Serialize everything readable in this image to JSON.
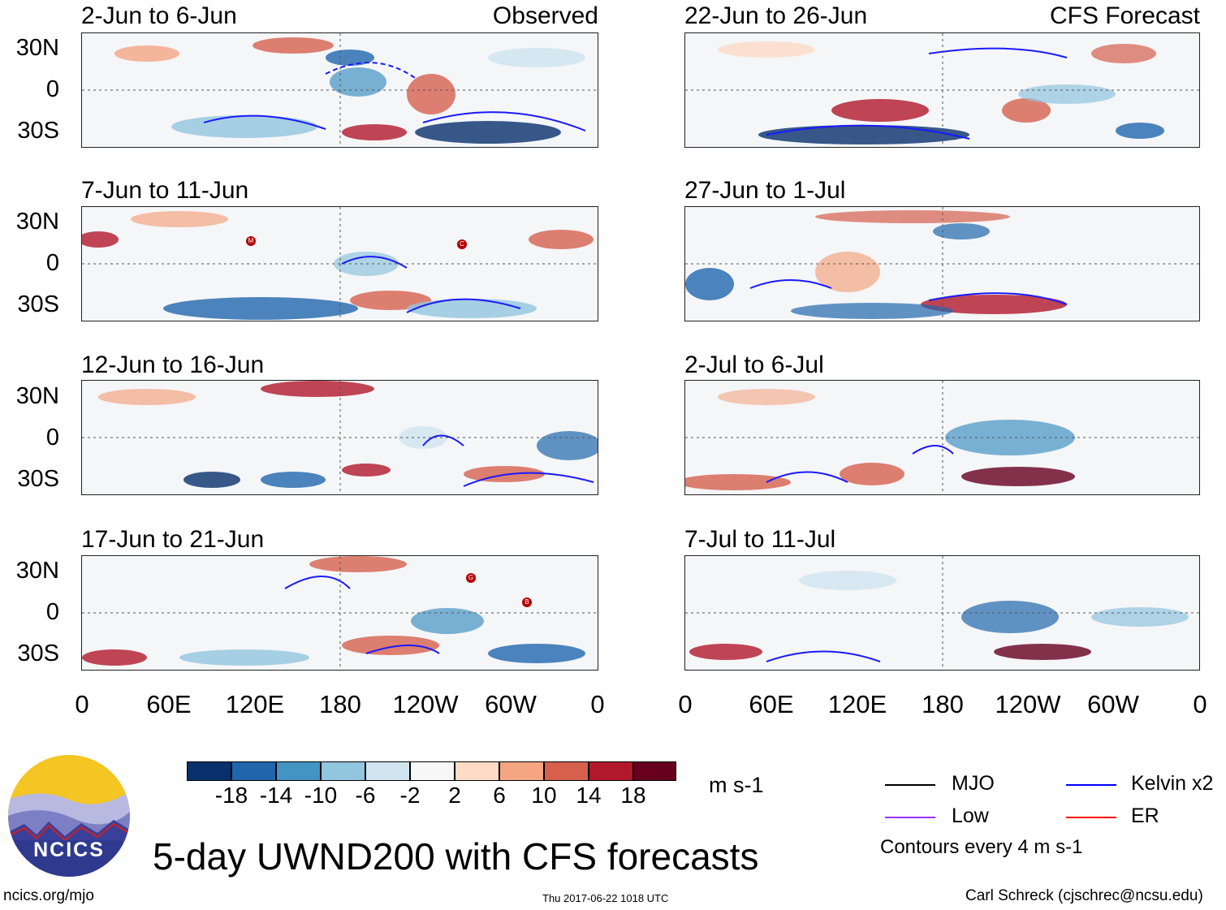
{
  "panels": {
    "observed": [
      {
        "title": "2-Jun to 6-Jun",
        "label": "Observed"
      },
      {
        "title": "7-Jun to 11-Jun"
      },
      {
        "title": "12-Jun to 16-Jun"
      },
      {
        "title": "17-Jun to 21-Jun"
      }
    ],
    "forecast": [
      {
        "title": "22-Jun to 26-Jun",
        "label": "CFS Forecast"
      },
      {
        "title": "27-Jun to 1-Jul"
      },
      {
        "title": "2-Jul to 6-Jul"
      },
      {
        "title": "7-Jul to 11-Jul"
      }
    ]
  },
  "lat_ticks": [
    "30N",
    "0",
    "30S"
  ],
  "lon_ticks": [
    "0",
    "60E",
    "120E",
    "180",
    "120W",
    "60W",
    "0"
  ],
  "storm_markers": {
    "p2a": "M",
    "p2b": "C",
    "p4a": "G",
    "p4b": "B"
  },
  "colorbar": {
    "labels": [
      "-18",
      "-14",
      "-10",
      "-6",
      "-2",
      "2",
      "6",
      "10",
      "14",
      "18"
    ],
    "colors": [
      "#08306b",
      "#2166ac",
      "#4393c3",
      "#92c5de",
      "#d1e5f0",
      "#f7f7f7",
      "#fddbc7",
      "#f4a582",
      "#d6604d",
      "#b2182b",
      "#67001f"
    ],
    "units": "m s-1"
  },
  "legend": {
    "items": [
      {
        "label": "MJO",
        "color": "#000000"
      },
      {
        "label": "Kelvin x2",
        "color": "#0000ff"
      },
      {
        "label": "Low",
        "color": "#9933ff"
      },
      {
        "label": "ER",
        "color": "#ff0000"
      }
    ],
    "contour_note": "Contours every 4 m s-1"
  },
  "logo_text": "NCICS",
  "main_title": "5-day UWND200 with CFS forecasts",
  "footer": {
    "left": "ncics.org/mjo",
    "center": "Thu 2017-06-22 1018 UTC",
    "right": "Carl Schreck (cjschrec@ncsu.edu)"
  }
}
